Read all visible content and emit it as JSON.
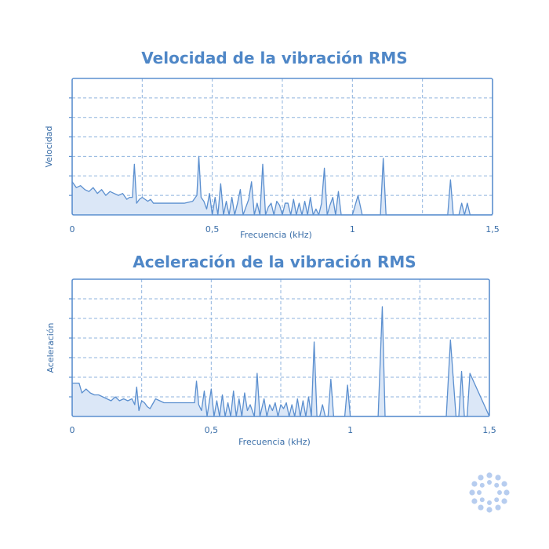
{
  "colors": {
    "accent": "#4f87c7",
    "line": "#5b8fcf",
    "fill": "#dbe7f7",
    "grid": "#8fb3de",
    "text": "#3a6ea8",
    "logo": "#b7cdef"
  },
  "logo_icon": "dotted-circle-logo-icon",
  "chart_data": [
    {
      "type": "line",
      "title": "Velocidad de la vibración RMS",
      "xlabel": "Frecuencia (kHz)",
      "ylabel": "Velocidad",
      "xlim": [
        0,
        1.5
      ],
      "ylim": [
        0,
        7
      ],
      "x_ticks": [
        0,
        0.5,
        1,
        1.5
      ],
      "x_tick_labels": [
        "0",
        "0,5",
        "1",
        "1,5"
      ],
      "grid": true,
      "fill": true,
      "series": [
        {
          "x": [
            0,
            0.015,
            0.03,
            0.045,
            0.06,
            0.075,
            0.09,
            0.105,
            0.12,
            0.135,
            0.15,
            0.165,
            0.18,
            0.195,
            0.205,
            0.215,
            0.222,
            0.23,
            0.24,
            0.25,
            0.26,
            0.27,
            0.28,
            0.29,
            0.31,
            0.34,
            0.37,
            0.4,
            0.43,
            0.445,
            0.452,
            0.46,
            0.47,
            0.48,
            0.49,
            0.5,
            0.51,
            0.52,
            0.53,
            0.54,
            0.55,
            0.56,
            0.57,
            0.58,
            0.59,
            0.6,
            0.61,
            0.62,
            0.63,
            0.64,
            0.65,
            0.66,
            0.67,
            0.68,
            0.69,
            0.7,
            0.71,
            0.72,
            0.73,
            0.74,
            0.75,
            0.76,
            0.77,
            0.78,
            0.79,
            0.8,
            0.81,
            0.82,
            0.83,
            0.84,
            0.85,
            0.86,
            0.87,
            0.88,
            0.89,
            0.9,
            0.91,
            0.92,
            0.93,
            0.94,
            0.95,
            0.96,
            0.97,
            0.98,
            0.99,
            1.0,
            1.02,
            1.035,
            1.045,
            1.055,
            1.07,
            1.1,
            1.11,
            1.12,
            1.13,
            1.15,
            1.2,
            1.3,
            1.33,
            1.34,
            1.35,
            1.36,
            1.37,
            1.38,
            1.39,
            1.4,
            1.41,
            1.42,
            1.43,
            1.5
          ],
          "y": [
            1.7,
            1.4,
            1.5,
            1.3,
            1.2,
            1.4,
            1.1,
            1.3,
            1.0,
            1.2,
            1.1,
            1.0,
            1.1,
            0.8,
            0.9,
            0.9,
            2.6,
            0.6,
            0.8,
            0.9,
            0.8,
            0.7,
            0.8,
            0.6,
            0.6,
            0.6,
            0.6,
            0.6,
            0.7,
            1.0,
            3.0,
            0.9,
            0.7,
            0.3,
            1.1,
            0.0,
            0.9,
            0.0,
            1.6,
            0.0,
            0.7,
            0.0,
            0.9,
            0.0,
            0.6,
            1.3,
            0.0,
            0.4,
            0.8,
            1.7,
            0.0,
            0.6,
            0.0,
            2.6,
            0.0,
            0.4,
            0.6,
            0.0,
            0.7,
            0.5,
            0.0,
            0.6,
            0.6,
            0.0,
            0.8,
            0.0,
            0.6,
            0.0,
            0.7,
            0.0,
            0.9,
            0.0,
            0.3,
            0.0,
            0.6,
            2.4,
            0.0,
            0.5,
            0.9,
            0.0,
            1.2,
            0.0,
            0.0,
            0.0,
            0.0,
            0.0,
            1.0,
            0.0,
            0.0,
            0.0,
            0.0,
            0.0,
            2.9,
            0.0,
            0.0,
            0.0,
            0.0,
            0.0,
            0.0,
            0.0,
            1.8,
            0.0,
            0.0,
            0.0,
            0.6,
            0.0,
            0.6,
            0.0,
            0.0,
            0.0
          ]
        }
      ]
    },
    {
      "type": "line",
      "title": "Aceleración de la vibración RMS",
      "xlabel": "Frecuencia (kHz)",
      "ylabel": "Aceleración",
      "xlim": [
        0,
        1.5
      ],
      "ylim": [
        0,
        7
      ],
      "x_ticks": [
        0,
        0.5,
        1,
        1.5
      ],
      "x_tick_labels": [
        "0",
        "0,5",
        "1",
        "1,5"
      ],
      "grid": true,
      "fill": true,
      "series": [
        {
          "x": [
            0,
            0.01,
            0.025,
            0.035,
            0.05,
            0.065,
            0.08,
            0.095,
            0.11,
            0.125,
            0.14,
            0.155,
            0.17,
            0.185,
            0.2,
            0.215,
            0.225,
            0.232,
            0.24,
            0.25,
            0.26,
            0.27,
            0.28,
            0.3,
            0.33,
            0.36,
            0.39,
            0.42,
            0.44,
            0.447,
            0.455,
            0.465,
            0.475,
            0.485,
            0.5,
            0.51,
            0.52,
            0.53,
            0.54,
            0.55,
            0.56,
            0.57,
            0.58,
            0.59,
            0.6,
            0.61,
            0.62,
            0.63,
            0.64,
            0.655,
            0.665,
            0.675,
            0.69,
            0.7,
            0.71,
            0.72,
            0.73,
            0.74,
            0.75,
            0.76,
            0.77,
            0.78,
            0.79,
            0.8,
            0.81,
            0.82,
            0.83,
            0.84,
            0.85,
            0.86,
            0.87,
            0.88,
            0.89,
            0.9,
            0.91,
            0.92,
            0.93,
            0.94,
            0.95,
            0.96,
            0.97,
            0.98,
            0.99,
            1.0,
            1.03,
            1.045,
            1.06,
            1.1,
            1.115,
            1.125,
            1.14,
            1.2,
            1.33,
            1.345,
            1.36,
            1.38,
            1.39,
            1.4,
            1.41,
            1.42,
            1.43,
            1.5
          ],
          "y": [
            1.7,
            1.7,
            1.7,
            1.2,
            1.4,
            1.2,
            1.1,
            1.1,
            1.0,
            0.9,
            0.8,
            1.0,
            0.8,
            0.9,
            0.8,
            0.9,
            0.6,
            1.5,
            0.3,
            0.8,
            0.7,
            0.5,
            0.4,
            0.9,
            0.7,
            0.7,
            0.7,
            0.7,
            0.7,
            1.8,
            0.6,
            0.3,
            1.3,
            0.0,
            1.4,
            0.0,
            0.8,
            0.0,
            1.1,
            0.0,
            0.7,
            0.0,
            1.3,
            0.0,
            0.9,
            0.0,
            1.2,
            0.3,
            0.6,
            0.0,
            2.2,
            0.0,
            0.9,
            0.0,
            0.6,
            0.3,
            0.7,
            0.0,
            0.6,
            0.4,
            0.7,
            0.0,
            0.6,
            0.0,
            0.9,
            0.0,
            0.8,
            0.0,
            1.0,
            0.0,
            3.8,
            0.0,
            0.0,
            0.6,
            0.0,
            0.0,
            1.9,
            0.0,
            0.0,
            0.0,
            0.0,
            0.0,
            1.6,
            0.0,
            0.0,
            0.0,
            0.0,
            0.0,
            5.6,
            0.0,
            0.0,
            0.0,
            0.0,
            0.0,
            3.9,
            0.0,
            0.0,
            2.3,
            0.0,
            0.0,
            2.2,
            0.0
          ]
        }
      ]
    }
  ]
}
